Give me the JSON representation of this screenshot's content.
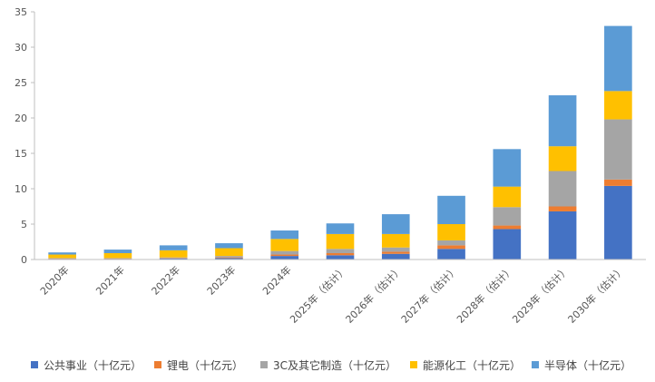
{
  "chart_data": {
    "type": "bar",
    "stacked": true,
    "categories": [
      "2020年",
      "2021年",
      "2022年",
      "2023年",
      "2024年",
      "2025年（估计）",
      "2026年（估计）",
      "2027年（估计）",
      "2028年（估计）",
      "2029年（估计）",
      "2030年（估计）"
    ],
    "series": [
      {
        "name": "公共事业（十亿元）",
        "color": "#4472C4",
        "values": [
          0.1,
          0.1,
          0.15,
          0.2,
          0.5,
          0.6,
          0.8,
          1.5,
          4.3,
          6.8,
          10.4
        ]
      },
      {
        "name": "锂电（十亿元）",
        "color": "#ED7D31",
        "values": [
          0.05,
          0.05,
          0.05,
          0.1,
          0.2,
          0.3,
          0.3,
          0.5,
          0.5,
          0.7,
          0.9
        ]
      },
      {
        "name": "3C及其它制造（十亿元）",
        "color": "#A5A5A5",
        "values": [
          0.05,
          0.05,
          0.1,
          0.2,
          0.5,
          0.6,
          0.6,
          0.7,
          2.6,
          5.0,
          8.5
        ]
      },
      {
        "name": "能源化工（十亿元）",
        "color": "#FFC000",
        "values": [
          0.5,
          0.7,
          1.0,
          1.1,
          1.7,
          2.1,
          1.9,
          2.3,
          2.9,
          3.5,
          4.0
        ]
      },
      {
        "name": "半导体（十亿元）",
        "color": "#5B9BD5",
        "values": [
          0.3,
          0.5,
          0.7,
          0.7,
          1.2,
          1.5,
          2.8,
          4.0,
          5.3,
          7.2,
          9.2
        ]
      }
    ],
    "ylim": [
      0,
      35
    ],
    "yticks": [
      0,
      5,
      10,
      15,
      20,
      25,
      30,
      35
    ],
    "grid": false,
    "legend_position": "bottom"
  }
}
